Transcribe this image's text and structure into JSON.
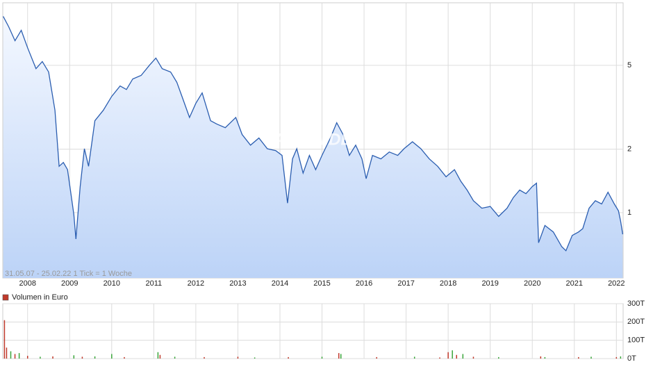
{
  "chart_data": [
    {
      "type": "line",
      "log_scale": true,
      "grid": true,
      "color": "#2a5db0",
      "watermark": "ARIVA.DE",
      "footnote": "31.05.07 - 25.02.22   1 Tick = 1 Woche",
      "xlim": [
        2007.41,
        2022.16
      ],
      "xticks": [
        2008,
        2009,
        2010,
        2011,
        2012,
        2013,
        2014,
        2015,
        2016,
        2017,
        2018,
        2019,
        2020,
        2021,
        2022
      ],
      "ylim": [
        0.49,
        9.9
      ],
      "yticks": [
        1,
        2,
        5
      ],
      "x": [
        2007.42,
        2007.55,
        2007.7,
        2007.85,
        2008.0,
        2008.2,
        2008.35,
        2008.5,
        2008.65,
        2008.75,
        2008.85,
        2008.95,
        2009.1,
        2009.15,
        2009.25,
        2009.35,
        2009.45,
        2009.6,
        2009.8,
        2010.0,
        2010.2,
        2010.35,
        2010.5,
        2010.7,
        2010.9,
        2011.05,
        2011.2,
        2011.4,
        2011.55,
        2011.7,
        2011.85,
        2012.0,
        2012.15,
        2012.35,
        2012.5,
        2012.7,
        2012.95,
        2013.1,
        2013.3,
        2013.5,
        2013.7,
        2013.9,
        2014.05,
        2014.18,
        2014.3,
        2014.4,
        2014.55,
        2014.7,
        2014.85,
        2015.0,
        2015.2,
        2015.35,
        2015.5,
        2015.65,
        2015.8,
        2015.95,
        2016.05,
        2016.2,
        2016.4,
        2016.6,
        2016.8,
        2016.95,
        2017.15,
        2017.35,
        2017.55,
        2017.75,
        2017.95,
        2018.15,
        2018.3,
        2018.45,
        2018.6,
        2018.8,
        2019.0,
        2019.2,
        2019.4,
        2019.55,
        2019.7,
        2019.85,
        2020.0,
        2020.1,
        2020.15,
        2020.3,
        2020.5,
        2020.7,
        2020.8,
        2020.95,
        2021.1,
        2021.2,
        2021.35,
        2021.5,
        2021.65,
        2021.8,
        2021.95,
        2022.05,
        2022.1,
        2022.15
      ],
      "values": [
        8.53,
        7.62,
        6.54,
        7.33,
        6.06,
        4.82,
        5.21,
        4.65,
        3.06,
        1.66,
        1.73,
        1.6,
        0.98,
        0.75,
        1.33,
        2.01,
        1.66,
        2.73,
        3.06,
        3.56,
        3.99,
        3.84,
        4.31,
        4.48,
        5.01,
        5.41,
        4.82,
        4.65,
        4.15,
        3.43,
        2.83,
        3.3,
        3.7,
        2.73,
        2.63,
        2.53,
        2.83,
        2.35,
        2.09,
        2.26,
        2.01,
        1.97,
        1.87,
        1.11,
        1.8,
        2.01,
        1.54,
        1.87,
        1.6,
        1.87,
        2.26,
        2.67,
        2.35,
        1.87,
        2.09,
        1.8,
        1.45,
        1.87,
        1.8,
        1.94,
        1.87,
        2.01,
        2.17,
        2.01,
        1.8,
        1.66,
        1.48,
        1.6,
        1.41,
        1.28,
        1.14,
        1.05,
        1.07,
        0.96,
        1.05,
        1.18,
        1.28,
        1.23,
        1.33,
        1.38,
        0.72,
        0.87,
        0.81,
        0.69,
        0.66,
        0.78,
        0.81,
        0.84,
        1.05,
        1.14,
        1.1,
        1.25,
        1.1,
        1.02,
        0.91,
        0.79
      ]
    },
    {
      "type": "bar",
      "grid": true,
      "legend": "Volumen in Euro",
      "legend_color": "#c0392b",
      "xlim": [
        2007.41,
        2022.16
      ],
      "xticks": [
        2008,
        2009,
        2010,
        2011,
        2012,
        2013,
        2014,
        2015,
        2016,
        2017,
        2018,
        2019,
        2020,
        2021,
        2022
      ],
      "ylim": [
        0,
        300
      ],
      "yticks": [
        {
          "value": 0,
          "label": "0T"
        },
        {
          "value": 100,
          "label": "100T"
        },
        {
          "value": 200,
          "label": "200T"
        },
        {
          "value": 300,
          "label": "300T"
        }
      ],
      "x": [
        2007.45,
        2007.5,
        2007.6,
        2007.7,
        2007.8,
        2008.0,
        2008.3,
        2008.6,
        2009.1,
        2009.3,
        2009.6,
        2010.0,
        2010.3,
        2011.1,
        2011.15,
        2011.5,
        2012.2,
        2013.0,
        2013.4,
        2014.2,
        2015.0,
        2015.4,
        2015.45,
        2016.3,
        2017.2,
        2017.8,
        2018.0,
        2018.1,
        2018.2,
        2018.35,
        2018.6,
        2019.2,
        2020.2,
        2020.3,
        2021.1,
        2021.4,
        2022.0,
        2022.1
      ],
      "values": [
        210,
        60,
        40,
        25,
        30,
        15,
        10,
        12,
        18,
        10,
        12,
        25,
        8,
        35,
        20,
        10,
        8,
        10,
        6,
        8,
        10,
        30,
        25,
        8,
        10,
        6,
        35,
        45,
        20,
        25,
        10,
        8,
        12,
        8,
        8,
        10,
        8,
        12
      ],
      "colors": [
        "#c0392b",
        "#c0392b",
        "#3aa53a",
        "#c0392b",
        "#3aa53a",
        "#c0392b",
        "#3aa53a",
        "#c0392b",
        "#3aa53a",
        "#c0392b",
        "#3aa53a",
        "#3aa53a",
        "#c0392b",
        "#3aa53a",
        "#c0392b",
        "#3aa53a",
        "#c0392b",
        "#c0392b",
        "#3aa53a",
        "#c0392b",
        "#3aa53a",
        "#c0392b",
        "#3aa53a",
        "#c0392b",
        "#3aa53a",
        "#c0392b",
        "#c0392b",
        "#3aa53a",
        "#c0392b",
        "#3aa53a",
        "#c0392b",
        "#3aa53a",
        "#c0392b",
        "#3aa53a",
        "#c0392b",
        "#3aa53a",
        "#c0392b",
        "#3aa53a"
      ]
    }
  ]
}
